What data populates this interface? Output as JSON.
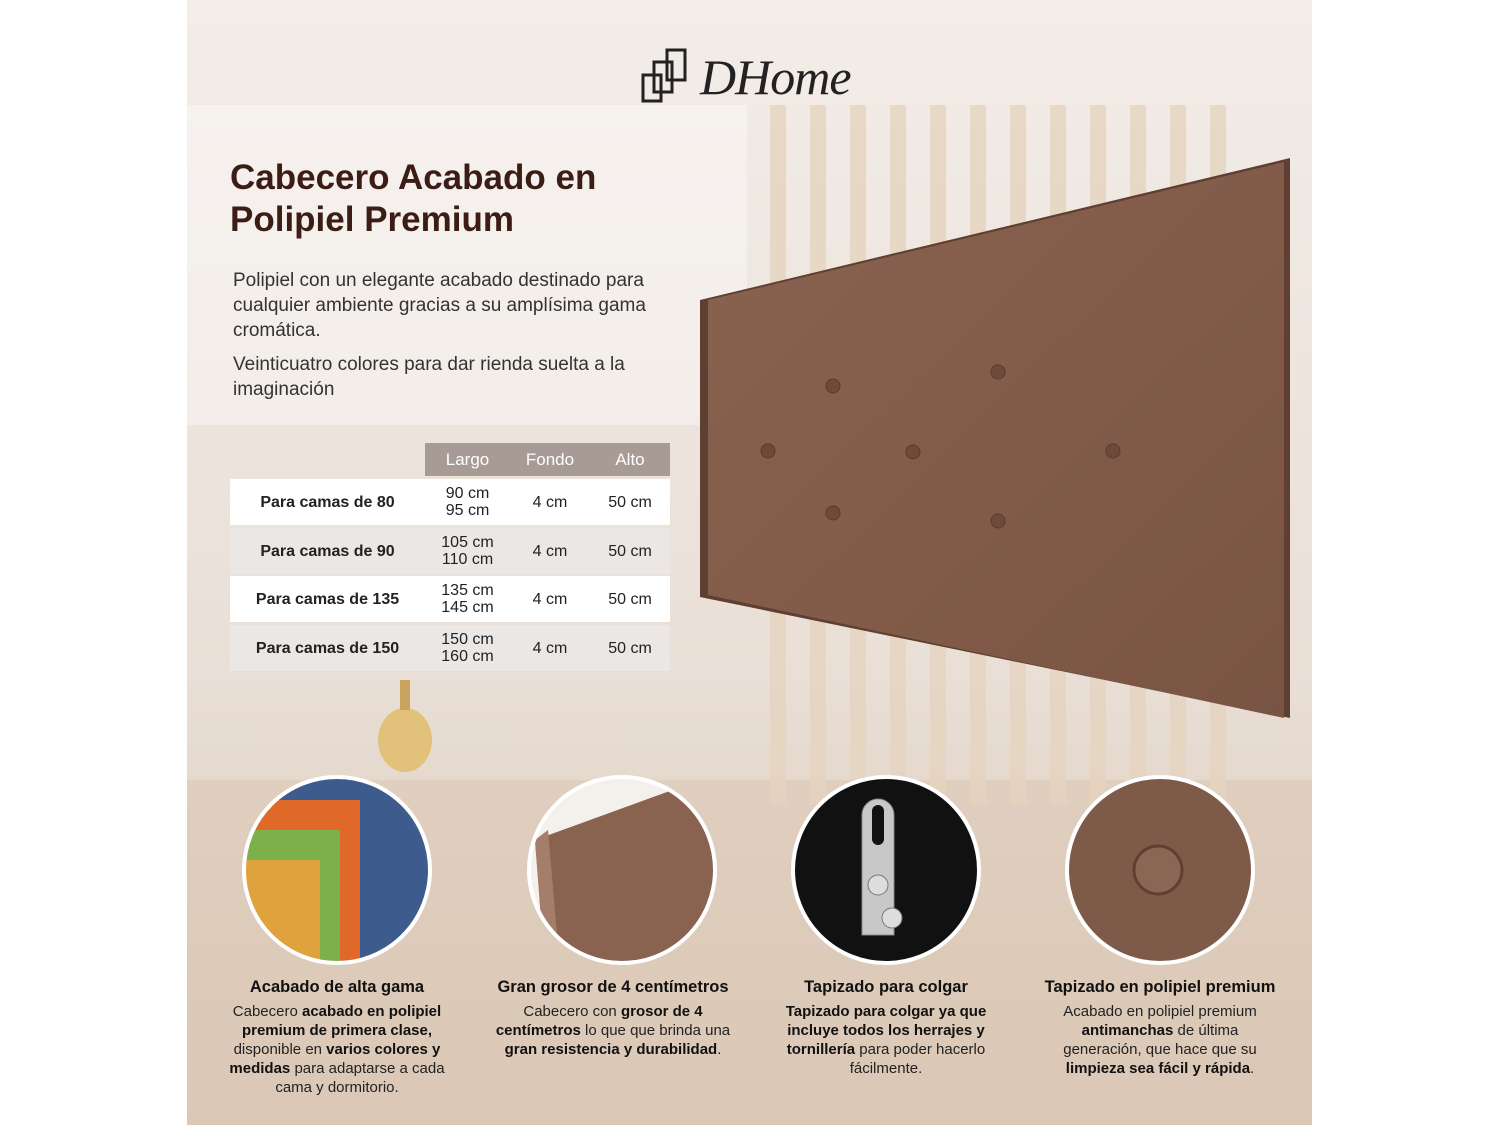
{
  "logo": "DHome",
  "title_lines": [
    "Cabecero Acabado en",
    "Polipiel Premium"
  ],
  "paragraphs": [
    "Polipiel con un elegante acabado destinado para cualquier ambiente gracias a su amplísima gama cromática.",
    "Veinticuatro colores para dar rienda suelta a la imaginación"
  ],
  "table": {
    "header": [
      "Largo",
      "Fondo",
      "Alto"
    ],
    "rows": [
      {
        "label": "Para camas de 80",
        "largo": [
          "90 cm",
          "95 cm"
        ],
        "fondo": "4 cm",
        "alto": "50 cm"
      },
      {
        "label": "Para camas de 90",
        "largo": [
          "105 cm",
          "110 cm"
        ],
        "fondo": "4 cm",
        "alto": "50 cm"
      },
      {
        "label": "Para camas de 135",
        "largo": [
          "135 cm",
          "145 cm"
        ],
        "fondo": "4 cm",
        "alto": "50 cm"
      },
      {
        "label": "Para camas de 150",
        "largo": [
          "150 cm",
          "160 cm"
        ],
        "fondo": "4 cm",
        "alto": "50 cm"
      }
    ]
  },
  "features": [
    {
      "title": "Acabado de alta gama",
      "description": [
        {
          "text": "Cabecero ",
          "bold": false
        },
        {
          "text": "acabado en polipiel premium de primera clase,",
          "bold": true
        },
        {
          "text": " disponible en ",
          "bold": false
        },
        {
          "text": "varios colores y medidas",
          "bold": true
        },
        {
          "text": " para adaptarse a cada cama y dormitorio.",
          "bold": false
        }
      ]
    },
    {
      "title": "Gran grosor de 4 centímetros",
      "description": [
        {
          "text": "Cabecero con ",
          "bold": false
        },
        {
          "text": "grosor de 4 centímetros",
          "bold": true
        },
        {
          "text": " lo que que brinda una ",
          "bold": false
        },
        {
          "text": "gran resistencia y durabilidad",
          "bold": true
        },
        {
          "text": ".",
          "bold": false
        }
      ]
    },
    {
      "title": "Tapizado para colgar",
      "description": [
        {
          "text": "Tapizado para colgar ya que incluye todos los herrajes y tornillería",
          "bold": true
        },
        {
          "text": " para poder hacerlo fácilmente.",
          "bold": false
        }
      ]
    },
    {
      "title": "Tapizado en polipiel premium",
      "description": [
        {
          "text": "Acabado en polipiel premium ",
          "bold": false
        },
        {
          "text": "antimanchas",
          "bold": true
        },
        {
          "text": " de última generación, que hace que su ",
          "bold": false
        },
        {
          "text": "limpieza sea fácil y rápida",
          "bold": true
        },
        {
          "text": ".",
          "bold": false
        }
      ]
    }
  ]
}
